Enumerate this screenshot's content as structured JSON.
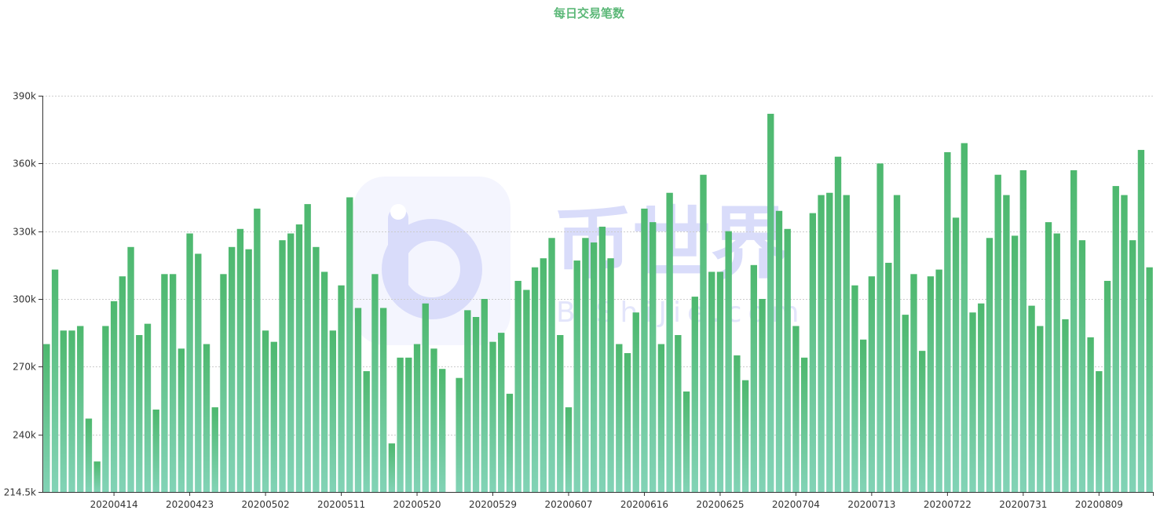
{
  "title": "每日交易笔数",
  "watermark": {
    "logo_text": "币世界",
    "sub_text": "BiShiJie.com"
  },
  "colors": {
    "bar_top": "#4db86e",
    "bar_bottom": "#82d3b6",
    "title": "#5cb878",
    "grid": "#cccccc",
    "axis": "#333333",
    "watermark": "#d9dcfa"
  },
  "chart_data": {
    "type": "bar",
    "title": "每日交易笔数",
    "xlabel": "",
    "ylabel": "",
    "ylim": [
      214500,
      390000
    ],
    "yticks": [
      "214.5k",
      "240k",
      "270k",
      "300k",
      "330k",
      "360k",
      "390k"
    ],
    "ytick_values": [
      214500,
      240000,
      270000,
      300000,
      330000,
      360000,
      390000
    ],
    "xtick_labels": [
      "20200414",
      "20200423",
      "20200502",
      "20200511",
      "20200520",
      "20200529",
      "20200607",
      "20200616",
      "20200625",
      "20200704",
      "20200713",
      "20200722",
      "20200731",
      "20200809"
    ],
    "grid": true,
    "legend": "none",
    "start_date": "20200406",
    "values": [
      280000,
      313000,
      286000,
      286000,
      288000,
      247000,
      228000,
      288000,
      299000,
      310000,
      323000,
      284000,
      289000,
      251000,
      311000,
      311000,
      278000,
      329000,
      320000,
      280000,
      252000,
      311000,
      323000,
      331000,
      322000,
      340000,
      286000,
      281000,
      326000,
      329000,
      333000,
      342000,
      323000,
      312000,
      286000,
      306000,
      345000,
      296000,
      268000,
      311000,
      296000,
      236000,
      274000,
      274000,
      280000,
      298000,
      278000,
      269000,
      null,
      265000,
      295000,
      292000,
      300000,
      281000,
      285000,
      258000,
      308000,
      304000,
      314000,
      318000,
      327000,
      284000,
      252000,
      317000,
      327000,
      325000,
      332000,
      318000,
      280000,
      276000,
      294000,
      340000,
      334000,
      280000,
      347000,
      284000,
      259000,
      301000,
      355000,
      312000,
      312000,
      330000,
      275000,
      264000,
      315000,
      300000,
      382000,
      339000,
      331000,
      288000,
      274000,
      338000,
      346000,
      347000,
      363000,
      346000,
      306000,
      282000,
      310000,
      360000,
      316000,
      346000,
      293000,
      311000,
      277000,
      310000,
      313000,
      365000,
      336000,
      369000,
      294000,
      298000,
      327000,
      355000,
      346000,
      328000,
      357000,
      297000,
      288000,
      334000,
      329000,
      291000,
      357000,
      326000,
      283000,
      268000,
      308000,
      350000,
      346000,
      326000,
      366000,
      314000
    ]
  }
}
